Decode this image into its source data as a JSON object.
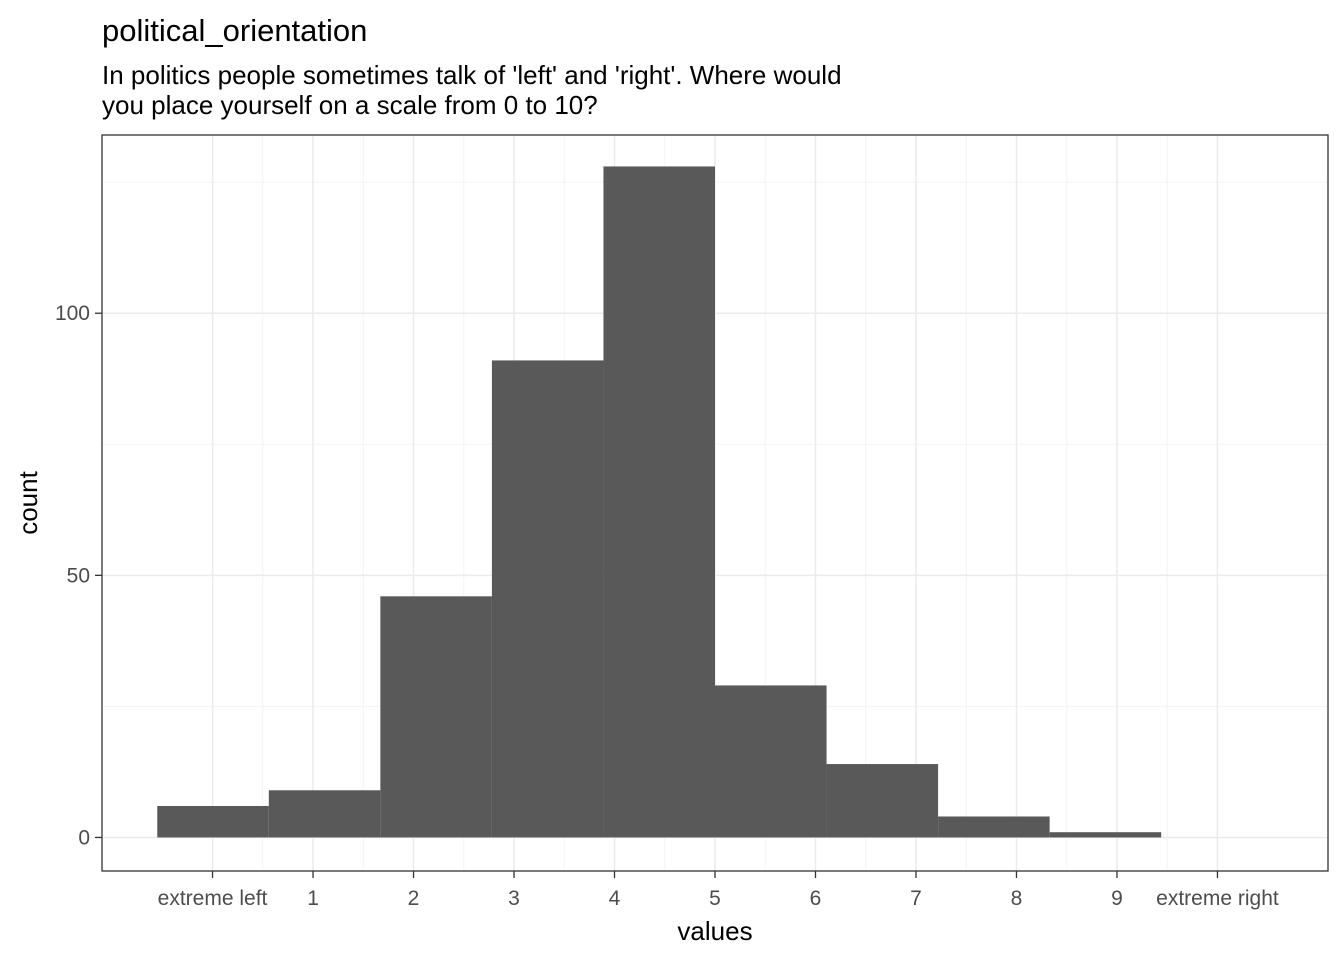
{
  "chart_data": {
    "type": "bar",
    "title": "political_orientation",
    "subtitle_lines": [
      "In politics people sometimes talk of 'left' and 'right'. Where would",
      "you place yourself on a scale from 0 to 10?"
    ],
    "xlabel": "values",
    "ylabel": "count",
    "x_ticks": [
      {
        "value": 0,
        "label": "extreme left"
      },
      {
        "value": 1,
        "label": "1"
      },
      {
        "value": 2,
        "label": "2"
      },
      {
        "value": 3,
        "label": "3"
      },
      {
        "value": 4,
        "label": "4"
      },
      {
        "value": 5,
        "label": "5"
      },
      {
        "value": 6,
        "label": "6"
      },
      {
        "value": 7,
        "label": "7"
      },
      {
        "value": 8,
        "label": "8"
      },
      {
        "value": 9,
        "label": "9"
      },
      {
        "value": 10,
        "label": "extreme right"
      }
    ],
    "y_ticks": [
      0,
      50,
      100
    ],
    "xlim": [
      -1.1,
      11.1
    ],
    "ylim": [
      -6.4,
      134
    ],
    "bins": [
      {
        "x0": -0.55,
        "x1": 0.56,
        "count": 6
      },
      {
        "x0": 0.56,
        "x1": 1.67,
        "count": 9
      },
      {
        "x0": 1.67,
        "x1": 2.78,
        "count": 46
      },
      {
        "x0": 2.78,
        "x1": 3.89,
        "count": 91
      },
      {
        "x0": 3.89,
        "x1": 5.0,
        "count": 128
      },
      {
        "x0": 5.0,
        "x1": 6.11,
        "count": 29
      },
      {
        "x0": 6.11,
        "x1": 7.22,
        "count": 14
      },
      {
        "x0": 7.22,
        "x1": 8.33,
        "count": 4
      },
      {
        "x0": 8.33,
        "x1": 9.44,
        "count": 1
      }
    ],
    "grid": true,
    "colors": {
      "bar": "#595959",
      "grid": "#ebebeb",
      "border": "#333333"
    }
  }
}
